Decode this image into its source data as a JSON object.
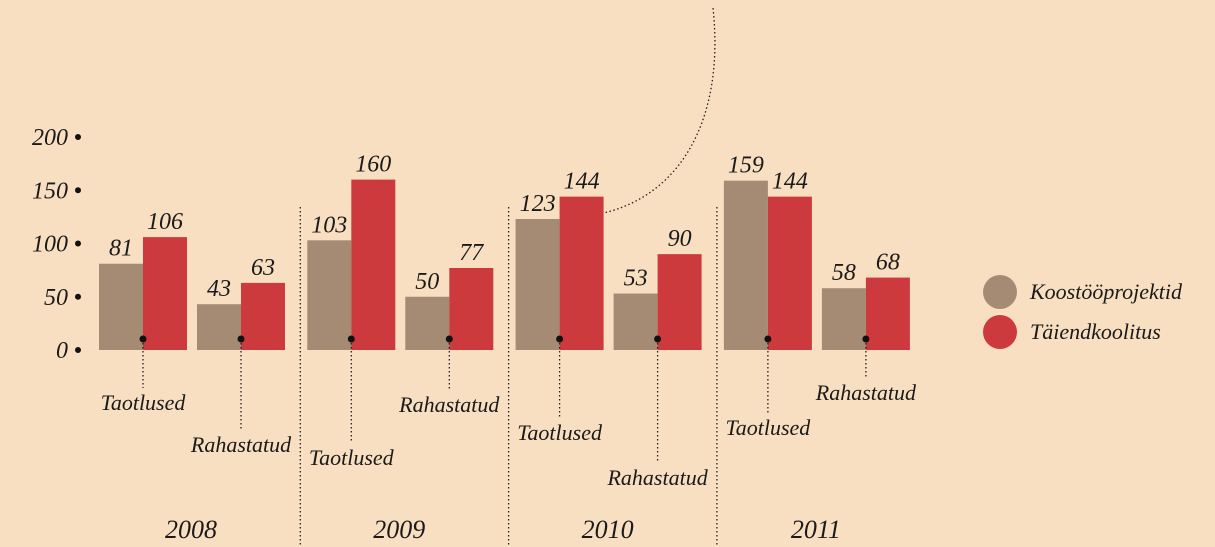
{
  "chart_data": {
    "type": "grouped_bar",
    "groups": [
      "2008",
      "2009",
      "2010",
      "2011"
    ],
    "categories": [
      "Taotlused",
      "Rahastatud",
      "Taotlused",
      "Rahastatud",
      "Taotlused",
      "Rahastatud",
      "Taotlused",
      "Rahastatud"
    ],
    "series": [
      {
        "name": "Koostööprojektid",
        "color": "#a58b73",
        "values": [
          81,
          43,
          103,
          50,
          123,
          53,
          159,
          58
        ]
      },
      {
        "name": "Täiendkoolitus",
        "color": "#cc3a3e",
        "values": [
          106,
          63,
          160,
          77,
          144,
          90,
          144,
          68
        ]
      }
    ],
    "ylim": [
      0,
      200
    ],
    "yticks": [
      0,
      50,
      100,
      150,
      200
    ],
    "legend": "right"
  }
}
